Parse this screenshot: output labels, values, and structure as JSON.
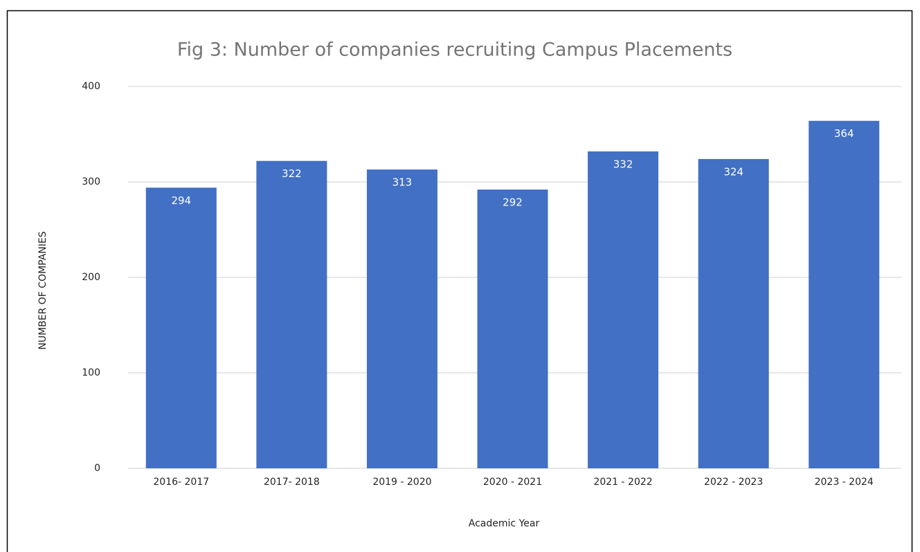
{
  "chart_data": {
    "type": "bar",
    "title": "Fig 3: Number of companies recruiting Campus Placements",
    "x_label": "Academic Year",
    "y_label": "NUMBER OF COMPANIES",
    "categories": [
      "2016- 2017",
      "2017- 2018",
      "2019 - 2020",
      "2020 - 2021",
      "2021 - 2022",
      "2022 - 2023",
      "2023 - 2024"
    ],
    "values": [
      294,
      322,
      313,
      292,
      332,
      324,
      364
    ],
    "color": "#4270c4",
    "ylim": [
      0,
      400
    ],
    "yticks": [
      0,
      100,
      200,
      300,
      400
    ],
    "grid": true
  }
}
